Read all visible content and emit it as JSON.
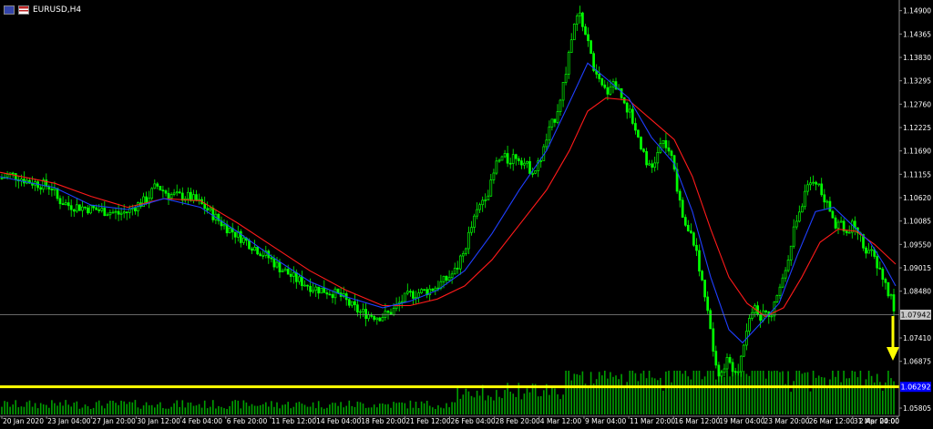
{
  "window": {
    "symbol_label": "EURUSD,H4"
  },
  "colors": {
    "background": "#000000",
    "candle": "#00ff00",
    "volume": "#00a000",
    "ma_fast": "#1f3fff",
    "ma_slow": "#ff1a1a",
    "grid_line": "#8a8a8a",
    "hline": "#ffff00",
    "arrow": "#ffff00",
    "axis_text": "#ffffff",
    "price_tag_current": "#c8c8c8",
    "price_tag_line": "#0000ff"
  },
  "chart_data": {
    "type": "candlestick",
    "y_ticks": [
      "1.14900",
      "1.14365",
      "1.13830",
      "1.13295",
      "1.12760",
      "1.12225",
      "1.11690",
      "1.11155",
      "1.10620",
      "1.10085",
      "1.09550",
      "1.09015",
      "1.08480",
      "1.07410",
      "1.06875",
      "1.05805"
    ],
    "y_tick_values": [
      1.149,
      1.14365,
      1.1383,
      1.13295,
      1.1276,
      1.12225,
      1.1169,
      1.11155,
      1.1062,
      1.10085,
      1.0955,
      1.09015,
      1.0848,
      1.0741,
      1.06875,
      1.05805
    ],
    "ylim": [
      1.0566,
      1.1506
    ],
    "x_tick_labels": [
      "20 Jan 2020",
      "23 Jan 04:00",
      "27 Jan 20:00",
      "30 Jan 12:00",
      "4 Feb 04:00",
      "6 Feb 20:00",
      "11 Feb 12:00",
      "14 Feb 04:00",
      "18 Feb 20:00",
      "21 Feb 12:00",
      "26 Feb 04:00",
      "28 Feb 20:00",
      "4 Mar 12:00",
      "9 Mar 04:00",
      "11 Mar 20:00",
      "16 Mar 12:00",
      "19 Mar 04:00",
      "23 Mar 20:00",
      "26 Mar 12:00",
      "31 Mar 04:00",
      "2 Apr 20:00"
    ],
    "current_price_label": "1.07942",
    "current_price": 1.07942,
    "horizontal_line_label": "1.06292",
    "horizontal_line_price": 1.06292,
    "close_path": [
      [
        0,
        1.1105
      ],
      [
        10,
        1.1115
      ],
      [
        20,
        1.111
      ],
      [
        30,
        1.11
      ],
      [
        40,
        1.1095
      ],
      [
        50,
        1.109
      ],
      [
        58,
        1.1085
      ],
      [
        62,
        1.106
      ],
      [
        75,
        1.1045
      ],
      [
        90,
        1.104
      ],
      [
        105,
        1.1035
      ],
      [
        120,
        1.103
      ],
      [
        130,
        1.1025
      ],
      [
        140,
        1.103
      ],
      [
        150,
        1.1045
      ],
      [
        160,
        1.1055
      ],
      [
        165,
        1.107
      ],
      [
        172,
        1.109
      ],
      [
        178,
        1.108
      ],
      [
        185,
        1.107
      ],
      [
        195,
        1.1065
      ],
      [
        205,
        1.1065
      ],
      [
        215,
        1.1055
      ],
      [
        225,
        1.104
      ],
      [
        235,
        1.102
      ],
      [
        245,
        1.1
      ],
      [
        255,
        1.0985
      ],
      [
        265,
        1.097
      ],
      [
        275,
        1.0955
      ],
      [
        285,
        1.094
      ],
      [
        295,
        1.0925
      ],
      [
        305,
        1.0905
      ],
      [
        315,
        1.089
      ],
      [
        325,
        1.0875
      ],
      [
        335,
        1.0865
      ],
      [
        345,
        1.0855
      ],
      [
        355,
        1.085
      ],
      [
        365,
        1.0845
      ],
      [
        375,
        1.0835
      ],
      [
        385,
        1.0815
      ],
      [
        395,
        1.08
      ],
      [
        405,
        1.0795
      ],
      [
        415,
        1.079
      ],
      [
        425,
        1.0795
      ],
      [
        432,
        1.0805
      ],
      [
        440,
        1.0825
      ],
      [
        450,
        1.084
      ],
      [
        460,
        1.0845
      ],
      [
        470,
        1.085
      ],
      [
        480,
        1.086
      ],
      [
        490,
        1.0875
      ],
      [
        500,
        1.0895
      ],
      [
        508,
        1.093
      ],
      [
        515,
        1.098
      ],
      [
        522,
        1.102
      ],
      [
        530,
        1.106
      ],
      [
        538,
        1.1085
      ],
      [
        545,
        1.114
      ],
      [
        552,
        1.1155
      ],
      [
        558,
        1.1145
      ],
      [
        565,
        1.116
      ],
      [
        572,
        1.115
      ],
      [
        580,
        1.113
      ],
      [
        588,
        1.1125
      ],
      [
        595,
        1.116
      ],
      [
        602,
        1.121
      ],
      [
        610,
        1.125
      ],
      [
        616,
        1.13
      ],
      [
        622,
        1.136
      ],
      [
        628,
        1.143
      ],
      [
        632,
        1.147
      ],
      [
        637,
        1.148
      ],
      [
        642,
        1.144
      ],
      [
        648,
        1.1395
      ],
      [
        654,
        1.134
      ],
      [
        660,
        1.1315
      ],
      [
        666,
        1.1305
      ],
      [
        672,
        1.133
      ],
      [
        678,
        1.131
      ],
      [
        684,
        1.129
      ],
      [
        690,
        1.126
      ],
      [
        696,
        1.123
      ],
      [
        702,
        1.119
      ],
      [
        708,
        1.116
      ],
      [
        714,
        1.112
      ],
      [
        720,
        1.115
      ],
      [
        726,
        1.119
      ],
      [
        732,
        1.118
      ],
      [
        738,
        1.114
      ],
      [
        744,
        1.108
      ],
      [
        750,
        1.101
      ],
      [
        756,
        1.098
      ],
      [
        762,
        1.096
      ],
      [
        768,
        1.09
      ],
      [
        774,
        1.082
      ],
      [
        780,
        1.076
      ],
      [
        786,
        1.068
      ],
      [
        792,
        1.065
      ],
      [
        798,
        1.07
      ],
      [
        804,
        1.066
      ],
      [
        810,
        1.067
      ],
      [
        816,
        1.073
      ],
      [
        822,
        1.079
      ],
      [
        828,
        1.081
      ],
      [
        834,
        1.079
      ],
      [
        840,
        1.08
      ],
      [
        846,
        1.0795
      ],
      [
        852,
        1.083
      ],
      [
        858,
        1.086
      ],
      [
        864,
        1.092
      ],
      [
        870,
        1.098
      ],
      [
        876,
        1.102
      ],
      [
        882,
        1.106
      ],
      [
        888,
        1.109
      ],
      [
        894,
        1.111
      ],
      [
        900,
        1.108
      ],
      [
        906,
        1.105
      ],
      [
        912,
        1.1025
      ],
      [
        918,
        1.1
      ],
      [
        924,
        1.101
      ],
      [
        930,
        1.0975
      ],
      [
        936,
        1.1
      ],
      [
        942,
        1.0985
      ],
      [
        948,
        1.095
      ],
      [
        954,
        1.094
      ],
      [
        960,
        1.092
      ],
      [
        966,
        1.0895
      ],
      [
        972,
        1.086
      ],
      [
        978,
        1.083
      ],
      [
        983,
        1.0794
      ]
    ],
    "ma_fast_path": [
      [
        0,
        1.111
      ],
      [
        60,
        1.1085
      ],
      [
        100,
        1.1045
      ],
      [
        140,
        1.1035
      ],
      [
        180,
        1.106
      ],
      [
        220,
        1.104
      ],
      [
        260,
        1.0985
      ],
      [
        300,
        1.0925
      ],
      [
        340,
        1.087
      ],
      [
        380,
        1.0835
      ],
      [
        420,
        1.081
      ],
      [
        450,
        1.0825
      ],
      [
        480,
        1.085
      ],
      [
        510,
        1.0895
      ],
      [
        540,
        1.098
      ],
      [
        570,
        1.108
      ],
      [
        600,
        1.117
      ],
      [
        625,
        1.128
      ],
      [
        645,
        1.137
      ],
      [
        665,
        1.1335
      ],
      [
        690,
        1.129
      ],
      [
        715,
        1.12
      ],
      [
        740,
        1.114
      ],
      [
        760,
        1.103
      ],
      [
        780,
        1.088
      ],
      [
        800,
        1.076
      ],
      [
        815,
        1.073
      ],
      [
        835,
        1.0775
      ],
      [
        855,
        1.082
      ],
      [
        875,
        1.093
      ],
      [
        895,
        1.103
      ],
      [
        915,
        1.104
      ],
      [
        935,
        1.1
      ],
      [
        955,
        1.096
      ],
      [
        970,
        1.091
      ],
      [
        983,
        1.086
      ]
    ],
    "ma_slow_path": [
      [
        0,
        1.112
      ],
      [
        60,
        1.1095
      ],
      [
        100,
        1.1065
      ],
      [
        140,
        1.104
      ],
      [
        180,
        1.106
      ],
      [
        220,
        1.1055
      ],
      [
        260,
        1.1005
      ],
      [
        300,
        1.095
      ],
      [
        340,
        1.0895
      ],
      [
        380,
        1.085
      ],
      [
        420,
        1.0815
      ],
      [
        450,
        1.0815
      ],
      [
        480,
        1.083
      ],
      [
        510,
        1.086
      ],
      [
        540,
        1.092
      ],
      [
        570,
        1.1
      ],
      [
        600,
        1.108
      ],
      [
        625,
        1.117
      ],
      [
        645,
        1.126
      ],
      [
        665,
        1.129
      ],
      [
        690,
        1.1285
      ],
      [
        715,
        1.124
      ],
      [
        740,
        1.1195
      ],
      [
        760,
        1.111
      ],
      [
        780,
        1.099
      ],
      [
        800,
        1.088
      ],
      [
        820,
        1.082
      ],
      [
        840,
        1.079
      ],
      [
        860,
        1.081
      ],
      [
        880,
        1.088
      ],
      [
        900,
        1.096
      ],
      [
        920,
        1.099
      ],
      [
        940,
        1.0985
      ],
      [
        960,
        1.0955
      ],
      [
        983,
        1.091
      ]
    ]
  }
}
